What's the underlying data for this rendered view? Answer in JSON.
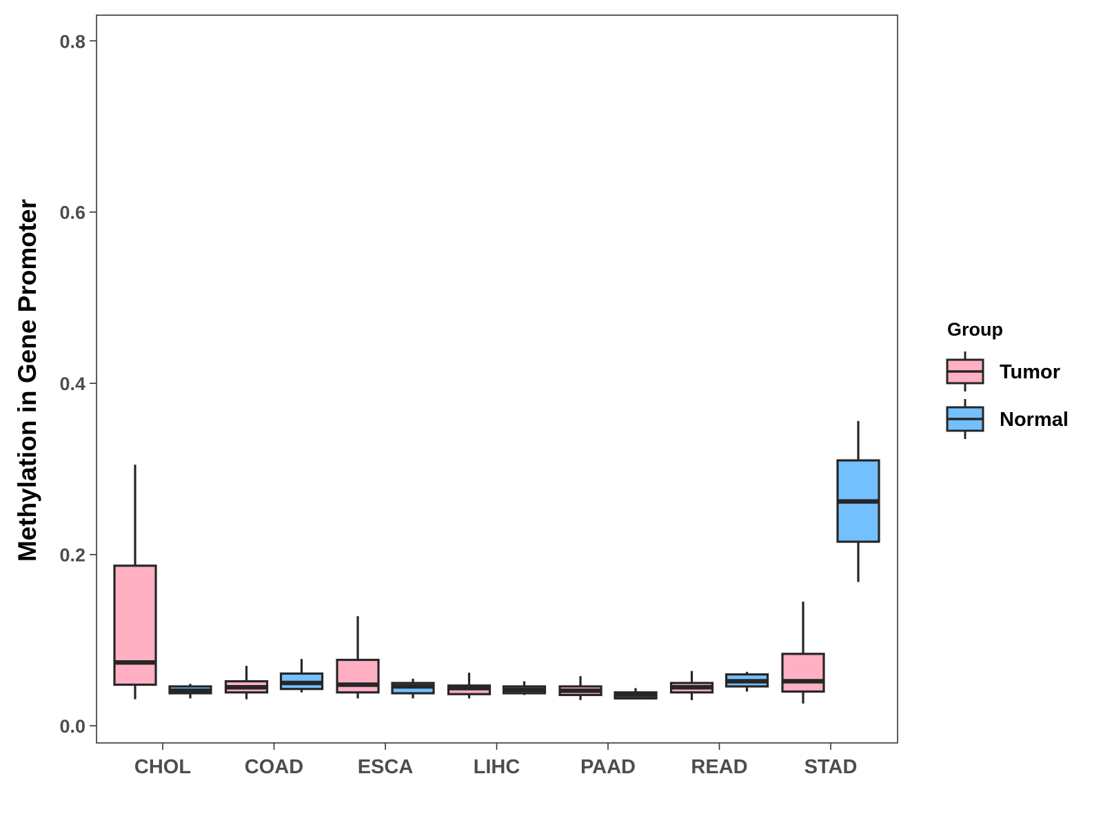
{
  "chart_data": {
    "type": "boxplot",
    "title": "",
    "xlabel": "",
    "ylabel": "Methylation in Gene Promoter",
    "ylim": [
      -0.02,
      0.83
    ],
    "yticks": [
      "0.0",
      "0.2",
      "0.4",
      "0.6",
      "0.8"
    ],
    "categories": [
      "CHOL",
      "COAD",
      "ESCA",
      "LIHC",
      "PAAD",
      "READ",
      "STAD"
    ],
    "legend": {
      "title": "Group",
      "position": "right",
      "entries": [
        {
          "name": "Tumor",
          "color": "#FFB0C2"
        },
        {
          "name": "Normal",
          "color": "#74C0FF"
        }
      ]
    },
    "series": [
      {
        "name": "Tumor",
        "color": "#FFB0C2",
        "boxes": [
          {
            "category": "CHOL",
            "min": 0.031,
            "q1": 0.048,
            "median": 0.074,
            "q3": 0.187,
            "max": 0.305
          },
          {
            "category": "COAD",
            "min": 0.031,
            "q1": 0.039,
            "median": 0.045,
            "q3": 0.052,
            "max": 0.07
          },
          {
            "category": "ESCA",
            "min": 0.032,
            "q1": 0.039,
            "median": 0.048,
            "q3": 0.077,
            "max": 0.128
          },
          {
            "category": "LIHC",
            "min": 0.032,
            "q1": 0.037,
            "median": 0.044,
            "q3": 0.047,
            "max": 0.062
          },
          {
            "category": "PAAD",
            "min": 0.03,
            "q1": 0.036,
            "median": 0.041,
            "q3": 0.046,
            "max": 0.058
          },
          {
            "category": "READ",
            "min": 0.03,
            "q1": 0.039,
            "median": 0.045,
            "q3": 0.05,
            "max": 0.064
          },
          {
            "category": "STAD",
            "min": 0.026,
            "q1": 0.04,
            "median": 0.052,
            "q3": 0.084,
            "max": 0.145
          }
        ]
      },
      {
        "name": "Normal",
        "color": "#74C0FF",
        "boxes": [
          {
            "category": "CHOL",
            "min": 0.032,
            "q1": 0.038,
            "median": 0.041,
            "q3": 0.046,
            "max": 0.049
          },
          {
            "category": "COAD",
            "min": 0.039,
            "q1": 0.043,
            "median": 0.05,
            "q3": 0.061,
            "max": 0.078
          },
          {
            "category": "ESCA",
            "min": 0.032,
            "q1": 0.038,
            "median": 0.046,
            "q3": 0.05,
            "max": 0.055
          },
          {
            "category": "LIHC",
            "min": 0.036,
            "q1": 0.038,
            "median": 0.042,
            "q3": 0.046,
            "max": 0.052
          },
          {
            "category": "PAAD",
            "min": 0.031,
            "q1": 0.032,
            "median": 0.036,
            "q3": 0.039,
            "max": 0.044
          },
          {
            "category": "READ",
            "min": 0.04,
            "q1": 0.046,
            "median": 0.052,
            "q3": 0.06,
            "max": 0.063
          },
          {
            "category": "STAD",
            "min": 0.168,
            "q1": 0.215,
            "median": 0.262,
            "q3": 0.31,
            "max": 0.356
          }
        ]
      }
    ]
  }
}
